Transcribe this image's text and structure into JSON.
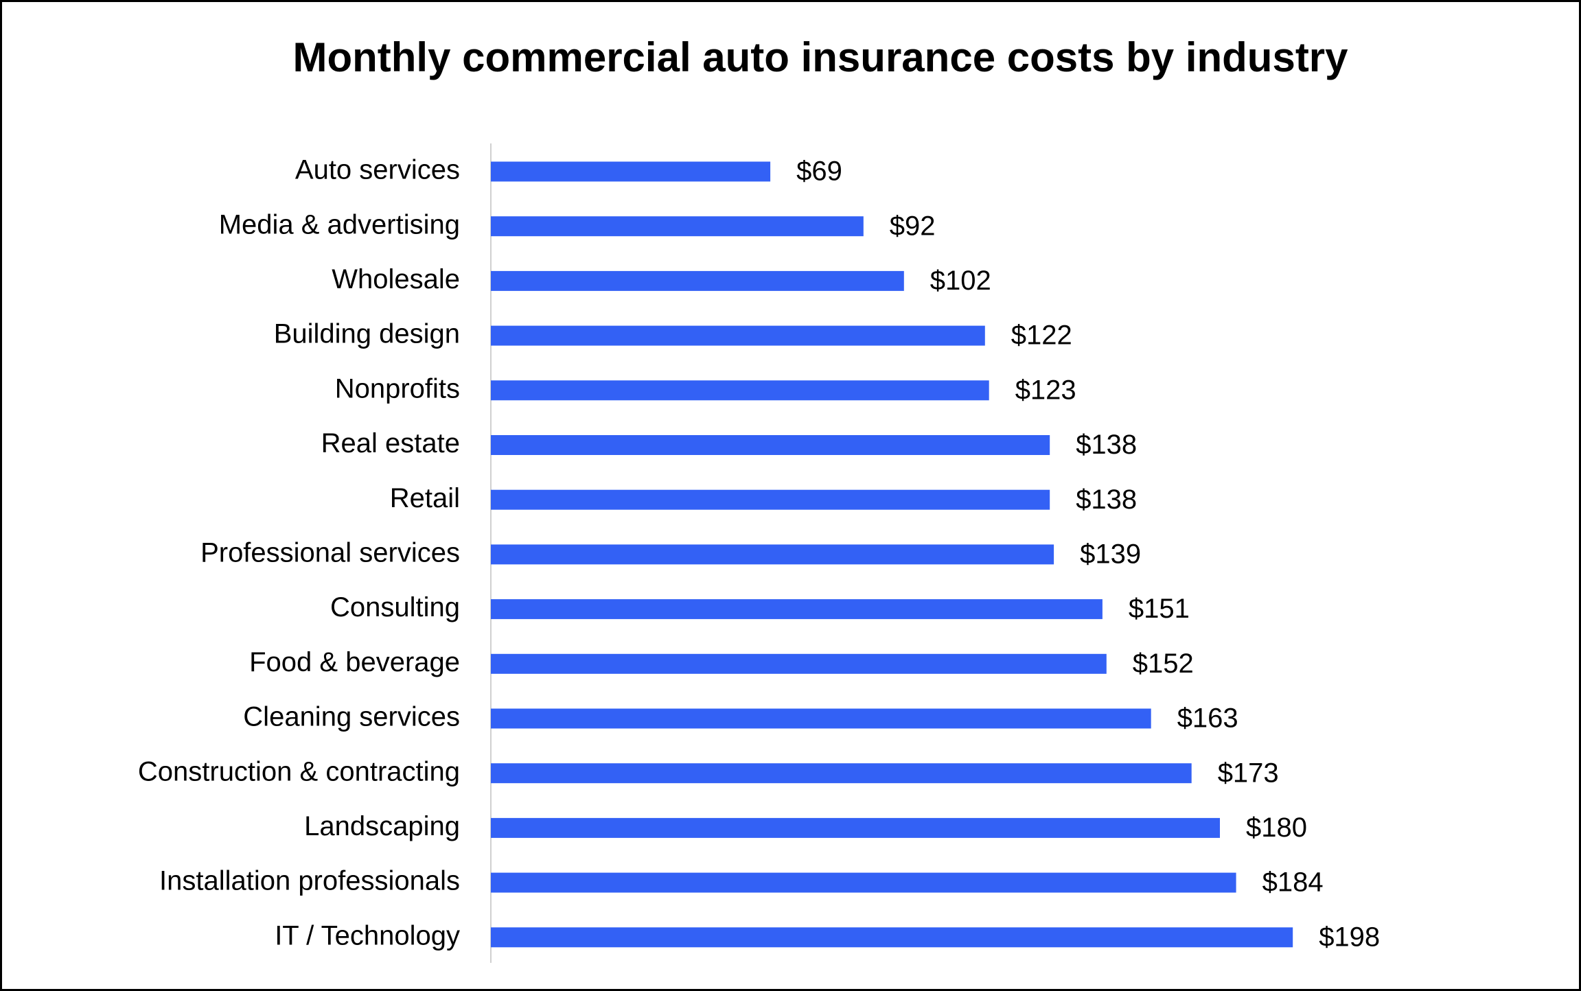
{
  "chart_data": {
    "type": "bar",
    "orientation": "horizontal",
    "title": "Monthly commercial auto insurance costs by industry",
    "categories": [
      "Auto services",
      "Media & advertising",
      "Wholesale",
      "Building design",
      "Nonprofits",
      "Real estate",
      "Retail",
      "Professional services",
      "Consulting",
      "Food & beverage",
      "Cleaning services",
      "Construction & contracting",
      "Landscaping",
      "Installation professionals",
      "IT / Technology"
    ],
    "values": [
      69,
      92,
      102,
      122,
      123,
      138,
      138,
      139,
      151,
      152,
      163,
      173,
      180,
      184,
      198
    ],
    "value_labels": [
      "$69",
      "$92",
      "$102",
      "$122",
      "$123",
      "$138",
      "$138",
      "$139",
      "$151",
      "$152",
      "$163",
      "$173",
      "$180",
      "$184",
      "$198"
    ],
    "color": "#3361f5",
    "xlim": [
      0,
      250
    ]
  }
}
